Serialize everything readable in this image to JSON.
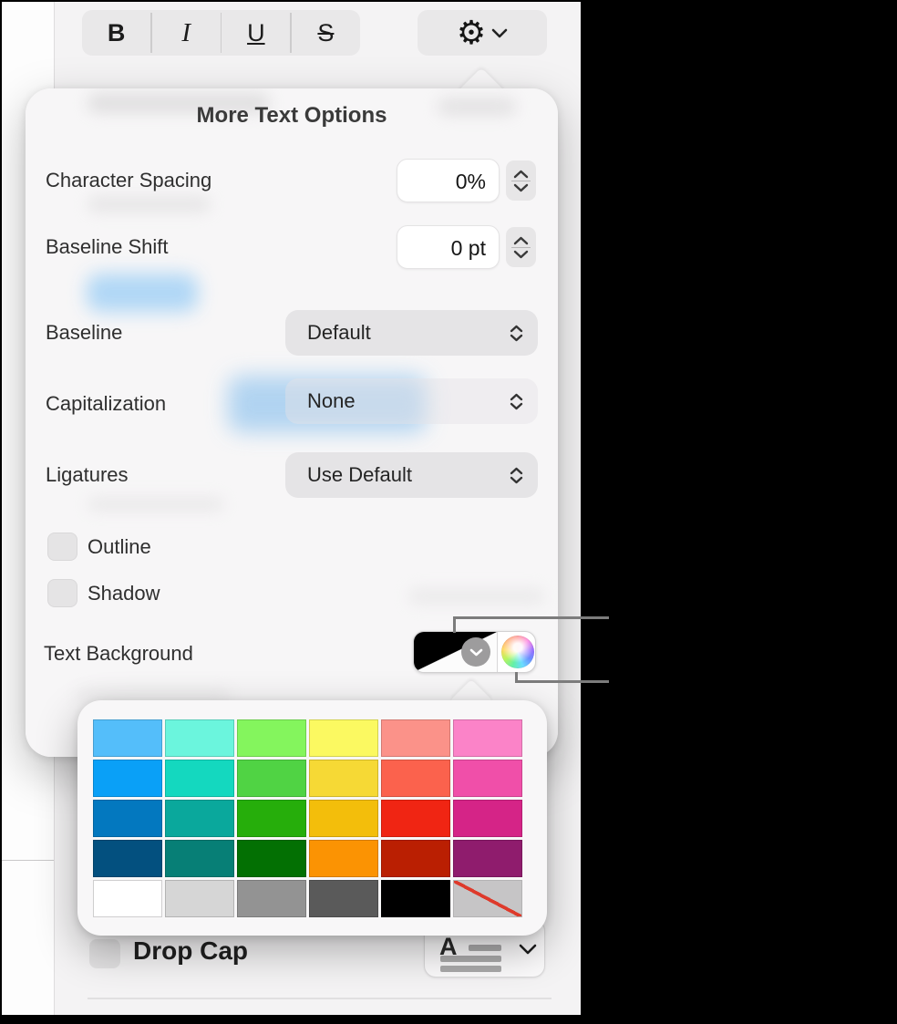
{
  "toolbar": {
    "bold_label": "B",
    "italic_label": "I",
    "underline_label": "U",
    "strikethrough_label": "S",
    "gear_glyph": "⚙"
  },
  "popover": {
    "title": "More Text Options",
    "character_spacing": {
      "label": "Character Spacing",
      "value": "0%"
    },
    "baseline_shift": {
      "label": "Baseline Shift",
      "value": "0 pt"
    },
    "baseline": {
      "label": "Baseline",
      "value": "Default"
    },
    "capitalization": {
      "label": "Capitalization",
      "value": "None"
    },
    "ligatures": {
      "label": "Ligatures",
      "value": "Use Default"
    },
    "outline": {
      "label": "Outline",
      "checked": false
    },
    "shadow": {
      "label": "Shadow",
      "checked": false
    },
    "text_background": {
      "label": "Text Background"
    }
  },
  "palette": {
    "rows": [
      [
        "#54BEFA",
        "#6BF5DD",
        "#84F55D",
        "#FBF961",
        "#FB9289",
        "#FB83C8"
      ],
      [
        "#0AA0F7",
        "#14D8BF",
        "#50D344",
        "#F6D935",
        "#FB624D",
        "#F04FA9"
      ],
      [
        "#0378BF",
        "#0AA89C",
        "#26AE0B",
        "#F3BE0B",
        "#F02513",
        "#D52487"
      ],
      [
        "#03507F",
        "#077F76",
        "#037003",
        "#FB9303",
        "#BA1F02",
        "#8F1C6D"
      ],
      [
        "#FFFFFF",
        "#D6D6D6",
        "#939393",
        "#5A5A5A",
        "#000000",
        "clear"
      ]
    ],
    "clear_meaning": "no-fill"
  },
  "bottom": {
    "drop_cap_label": "Drop Cap"
  },
  "colors": {
    "panel_bg": "#F4F3F4",
    "popover_bg": "#F7F6F7",
    "control_bg": "#E7E6E7",
    "selection_highlight": "#A9D4F6",
    "callout_line": "#7C7C7C",
    "no_fill_slash": "#DE3A2B"
  }
}
